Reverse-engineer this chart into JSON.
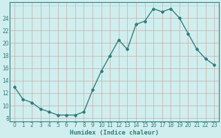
{
  "x": [
    0,
    1,
    2,
    3,
    4,
    5,
    6,
    7,
    8,
    9,
    10,
    11,
    12,
    13,
    14,
    15,
    16,
    17,
    18,
    19,
    20,
    21,
    22,
    23
  ],
  "y": [
    13,
    11,
    10.5,
    9.5,
    9,
    8.5,
    8.5,
    8.5,
    9,
    12.5,
    15.5,
    18,
    20.5,
    19,
    23,
    23.5,
    25.5,
    25,
    25.5,
    24,
    21.5,
    19,
    17.5,
    16.5
  ],
  "line_color": "#2e7d7d",
  "marker": "D",
  "marker_size": 2,
  "bg_color": "#d0eeee",
  "minor_grid_color": "#a8d8d8",
  "major_grid_color": "#c8a8a8",
  "xlabel": "Humidex (Indice chaleur)",
  "xlim": [
    -0.5,
    23.5
  ],
  "ylim": [
    7.5,
    26.5
  ],
  "ytick_major": [
    8,
    10,
    12,
    14,
    16,
    18,
    20,
    22,
    24
  ],
  "ytick_minor_step": 2,
  "xtick_major": [
    0,
    2,
    4,
    6,
    8,
    10,
    12,
    14,
    16,
    18,
    20,
    22
  ],
  "xtick_minor_step": 1,
  "xtick_labels": [
    "0",
    "1",
    "2",
    "3",
    "4",
    "5",
    "6",
    "7",
    "8",
    "9",
    "10",
    "11",
    "12",
    "13",
    "14",
    "15",
    "16",
    "17",
    "18",
    "19",
    "20",
    "21",
    "22",
    "23"
  ],
  "label_fontsize": 6.5,
  "tick_fontsize": 5.5,
  "spine_color": "#2e7d7d"
}
